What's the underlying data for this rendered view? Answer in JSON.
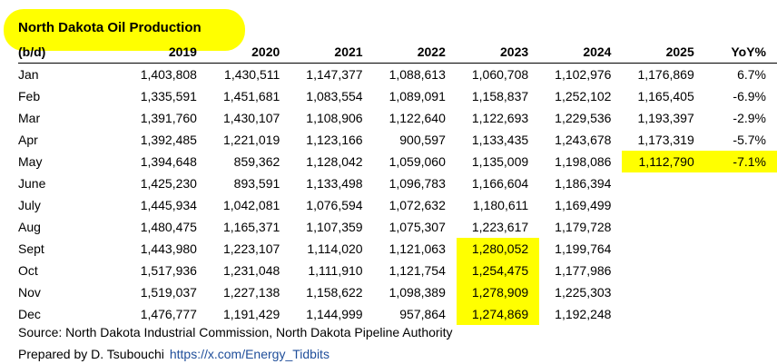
{
  "title": "North Dakota Oil Production",
  "chart_data": {
    "type": "table",
    "title": "North Dakota Oil Production",
    "unit_label": "(b/d)",
    "columns": [
      "2019",
      "2020",
      "2021",
      "2022",
      "2023",
      "2024",
      "2025",
      "YoY%"
    ],
    "rows": [
      {
        "month": "Jan",
        "values": [
          "1,403,808",
          "1,430,511",
          "1,147,377",
          "1,088,613",
          "1,060,708",
          "1,102,976",
          "1,176,869",
          "6.7%"
        ],
        "highlight": []
      },
      {
        "month": "Feb",
        "values": [
          "1,335,591",
          "1,451,681",
          "1,083,554",
          "1,089,091",
          "1,158,837",
          "1,252,102",
          "1,165,405",
          "-6.9%"
        ],
        "highlight": []
      },
      {
        "month": "Mar",
        "values": [
          "1,391,760",
          "1,430,107",
          "1,108,906",
          "1,122,640",
          "1,122,693",
          "1,229,536",
          "1,193,397",
          "-2.9%"
        ],
        "highlight": []
      },
      {
        "month": "Apr",
        "values": [
          "1,392,485",
          "1,221,019",
          "1,123,166",
          "900,597",
          "1,133,435",
          "1,243,678",
          "1,173,319",
          "-5.7%"
        ],
        "highlight": []
      },
      {
        "month": "May",
        "values": [
          "1,394,648",
          "859,362",
          "1,128,042",
          "1,059,060",
          "1,135,009",
          "1,198,086",
          "1,112,790",
          "-7.1%"
        ],
        "highlight": [
          6,
          7
        ]
      },
      {
        "month": "June",
        "values": [
          "1,425,230",
          "893,591",
          "1,133,498",
          "1,096,783",
          "1,166,604",
          "1,186,394",
          "",
          ""
        ],
        "highlight": []
      },
      {
        "month": "July",
        "values": [
          "1,445,934",
          "1,042,081",
          "1,076,594",
          "1,072,632",
          "1,180,611",
          "1,169,499",
          "",
          ""
        ],
        "highlight": []
      },
      {
        "month": "Aug",
        "values": [
          "1,480,475",
          "1,165,371",
          "1,107,359",
          "1,075,307",
          "1,223,617",
          "1,179,728",
          "",
          ""
        ],
        "highlight": []
      },
      {
        "month": "Sept",
        "values": [
          "1,443,980",
          "1,223,107",
          "1,114,020",
          "1,121,063",
          "1,280,052",
          "1,199,764",
          "",
          ""
        ],
        "highlight": [
          4
        ]
      },
      {
        "month": "Oct",
        "values": [
          "1,517,936",
          "1,231,048",
          "1,111,910",
          "1,121,754",
          "1,254,475",
          "1,177,986",
          "",
          ""
        ],
        "highlight": [
          4
        ]
      },
      {
        "month": "Nov",
        "values": [
          "1,519,037",
          "1,227,138",
          "1,158,622",
          "1,098,389",
          "1,278,909",
          "1,225,303",
          "",
          ""
        ],
        "highlight": [
          4
        ]
      },
      {
        "month": "Dec",
        "values": [
          "1,476,777",
          "1,191,429",
          "1,144,999",
          "957,864",
          "1,274,869",
          "1,192,248",
          "",
          ""
        ],
        "highlight": [
          4
        ]
      }
    ],
    "highlight_color": "#ffff00"
  },
  "footer": {
    "source": "Source: North Dakota Industrial Commission, North Dakota Pipeline Authority",
    "prepared_by": "Prepared by D. Tsubouchi",
    "link": "https://x.com/Energy_Tidbits"
  },
  "colors": {
    "link": "#1f4e9a",
    "highlight": "#ffff00"
  }
}
